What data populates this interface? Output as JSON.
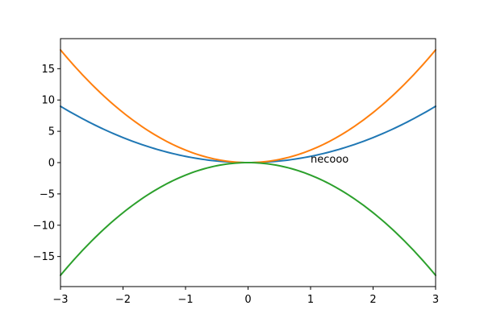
{
  "chart_data": {
    "type": "line",
    "title": "",
    "xlabel": "",
    "ylabel": "",
    "xlim": [
      -3,
      3
    ],
    "ylim": [
      -19.8,
      19.8
    ],
    "grid": false,
    "x_ticks": [
      -3,
      -2,
      -1,
      0,
      1,
      2,
      3
    ],
    "x_tick_labels": [
      "−3",
      "−2",
      "−1",
      "0",
      "1",
      "2",
      "3"
    ],
    "y_ticks": [
      -15,
      -10,
      -5,
      0,
      5,
      10,
      15
    ],
    "y_tick_labels": [
      "−15",
      "−10",
      "−5",
      "0",
      "5",
      "10",
      "15"
    ],
    "x": [
      -3,
      -2.5,
      -2,
      -1.5,
      -1,
      -0.5,
      0,
      0.5,
      1,
      1.5,
      2,
      2.5,
      3
    ],
    "series": [
      {
        "color": "#1f77b4",
        "values": [
          9,
          6.25,
          4,
          2.25,
          1,
          0.25,
          0,
          0.25,
          1,
          2.25,
          4,
          6.25,
          9
        ]
      },
      {
        "color": "#ff7f0e",
        "values": [
          18,
          12.5,
          8,
          4.5,
          2,
          0.5,
          0,
          0.5,
          2,
          4.5,
          8,
          12.5,
          18
        ]
      },
      {
        "color": "#2ca02c",
        "values": [
          -18,
          -12.5,
          -8,
          -4.5,
          -2,
          -0.5,
          0,
          -0.5,
          -2,
          -4.5,
          -8,
          -12.5,
          -18
        ]
      }
    ],
    "annotations": [
      {
        "text": "necooo",
        "x": 1,
        "y": 0
      }
    ]
  }
}
